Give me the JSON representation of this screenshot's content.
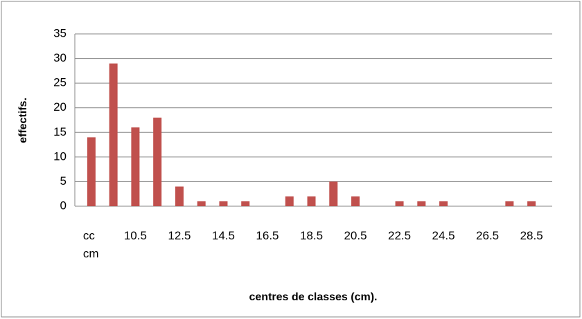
{
  "chart_data": {
    "type": "bar",
    "x_label": "centres de classes (cm).",
    "y_label": "effectifs.",
    "categories": [
      "cc cm",
      null,
      "10.5",
      null,
      "12.5",
      null,
      "14.5",
      null,
      "16.5",
      null,
      "18.5",
      null,
      "20.5",
      null,
      "22.5",
      null,
      "24.5",
      null,
      "26.5",
      null,
      "28.5"
    ],
    "values": [
      14,
      29,
      16,
      18,
      4,
      1,
      1,
      1,
      0,
      2,
      2,
      5,
      2,
      0,
      1,
      1,
      1,
      0,
      0,
      1,
      1
    ],
    "color": "#c0504d",
    "ylim": [
      0,
      35
    ],
    "yticks": [
      0,
      5,
      10,
      15,
      20,
      25,
      30,
      35
    ],
    "grid": true
  }
}
